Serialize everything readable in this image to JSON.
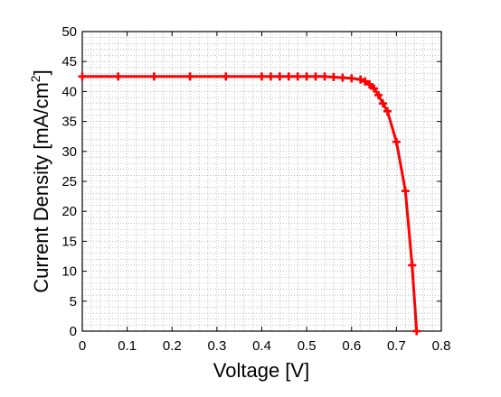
{
  "chart_data": {
    "type": "line",
    "title": "",
    "xlabel": "Voltage [V]",
    "ylabel": "Current Density [mA/cm",
    "ylabel_superscript": "2",
    "ylabel_suffix": "]",
    "xlim": [
      0,
      0.8
    ],
    "ylim": [
      0,
      50
    ],
    "x_ticks": [
      "0",
      "0.1",
      "0.2",
      "0.3",
      "0.4",
      "0.5",
      "0.6",
      "0.7",
      "0.8"
    ],
    "y_ticks": [
      "0",
      "5",
      "10",
      "15",
      "20",
      "25",
      "30",
      "35",
      "40",
      "45",
      "50"
    ],
    "grid": "dotted major and minor",
    "legend": "none",
    "series_color": "#ff0000",
    "marker": "plus",
    "series": [
      {
        "x": [
          0,
          0.08,
          0.16,
          0.24,
          0.32,
          0.4,
          0.42,
          0.44,
          0.46,
          0.48,
          0.5,
          0.52,
          0.54,
          0.56,
          0.58,
          0.6,
          0.62,
          0.63,
          0.64,
          0.65,
          0.66,
          0.67,
          0.68,
          0.7,
          0.72,
          0.735,
          0.745
        ],
        "y": [
          42.5,
          42.5,
          42.5,
          42.5,
          42.5,
          42.5,
          42.5,
          42.5,
          42.5,
          42.5,
          42.5,
          42.5,
          42.5,
          42.4,
          42.3,
          42.2,
          42.0,
          41.7,
          41.2,
          40.5,
          39.4,
          38.0,
          36.7,
          31.6,
          23.4,
          11.0,
          0
        ]
      }
    ]
  }
}
